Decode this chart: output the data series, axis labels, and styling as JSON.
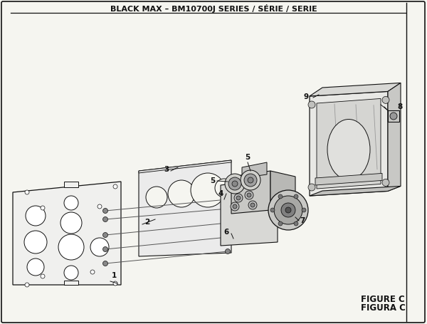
{
  "title": "BLACK MAX – BM10700J SERIES / SÉRIE / SERIE",
  "figure_label": "FIGURE C",
  "figura_label": "FIGURA C",
  "bg_color": "#f5f5f0",
  "border_color": "#111111",
  "line_color": "#111111",
  "title_fontsize": 8.0,
  "fig_label_fontsize": 8.5
}
